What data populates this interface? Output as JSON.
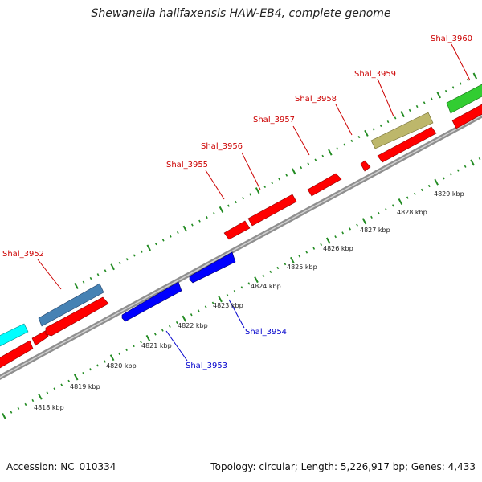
{
  "title": "Shewanella halifaxensis HAW-EB4, complete genome",
  "footer": {
    "accession": "Accession: NC_010334",
    "summary": "Topology: circular; Length: 5,226,917 bp; Genes: 4,433"
  },
  "colors": {
    "forward_cds": "#ff0000",
    "reverse_cds": "#0000ff",
    "gene_label_forward": "#cc0000",
    "gene_label_reverse": "#0000cc",
    "backbone": "#999999",
    "scale_ticks": "#228b22",
    "cog_cyan": "#00ffff",
    "cog_steelblue": "#4682b4",
    "cog_khaki": "#bdb76b",
    "cog_green": "#32cd32"
  },
  "gene_labels": [
    {
      "name": "Shal_3952",
      "strand": "forward"
    },
    {
      "name": "Shal_3953",
      "strand": "reverse"
    },
    {
      "name": "Shal_3954",
      "strand": "reverse"
    },
    {
      "name": "Shal_3955",
      "strand": "forward"
    },
    {
      "name": "Shal_3956",
      "strand": "forward"
    },
    {
      "name": "Shal_3957",
      "strand": "forward"
    },
    {
      "name": "Shal_3958",
      "strand": "forward"
    },
    {
      "name": "Shal_3959",
      "strand": "forward"
    },
    {
      "name": "Shal_3960",
      "strand": "forward"
    }
  ],
  "kbp_labels": [
    "4818 kbp",
    "4819 kbp",
    "4820 kbp",
    "4821 kbp",
    "4822 kbp",
    "4823 kbp",
    "4824 kbp",
    "4825 kbp",
    "4826 kbp",
    "4827 kbp",
    "4828 kbp",
    "4829 kbp"
  ]
}
